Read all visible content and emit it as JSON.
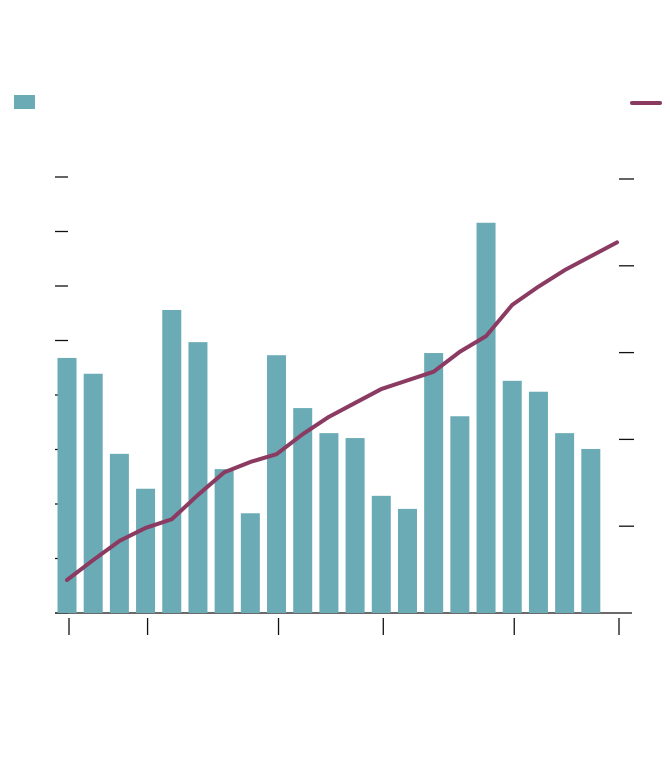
{
  "chart_data": {
    "type": "combo",
    "xlim": [
      0,
      21
    ],
    "xticks": [
      0,
      3,
      8,
      12,
      17,
      21
    ],
    "ylim": [
      0,
      8
    ],
    "yticks": [
      0,
      1,
      2,
      3,
      4,
      5,
      6,
      7,
      8
    ],
    "y2lim": [
      0,
      5
    ],
    "y2ticks": [
      1,
      2,
      3,
      4,
      5
    ],
    "series": [
      {
        "type": "bar",
        "color": "#6aabb5",
        "x": [
          0,
          1,
          2,
          3,
          4,
          5,
          6,
          7,
          8,
          9,
          10,
          11,
          12,
          13,
          14,
          15,
          16,
          17,
          18,
          19,
          20
        ],
        "values": [
          4.68,
          4.39,
          2.92,
          2.28,
          5.56,
          4.97,
          2.64,
          1.83,
          4.73,
          3.76,
          3.3,
          3.21,
          2.15,
          1.91,
          4.77,
          3.61,
          7.16,
          4.26,
          4.06,
          3.3,
          3.01
        ]
      },
      {
        "type": "line",
        "color": "#8b3a62",
        "axis": "y2",
        "x": [
          0,
          1,
          2,
          3,
          4,
          5,
          6,
          7,
          8,
          9,
          10,
          11,
          12,
          13,
          14,
          15,
          16,
          17,
          18,
          19,
          20,
          21
        ],
        "values": [
          0.38,
          0.61,
          0.83,
          0.98,
          1.08,
          1.36,
          1.62,
          1.74,
          1.83,
          2.06,
          2.26,
          2.42,
          2.58,
          2.68,
          2.78,
          3.01,
          3.19,
          3.55,
          3.76,
          3.95,
          4.11,
          4.27
        ]
      }
    ]
  }
}
